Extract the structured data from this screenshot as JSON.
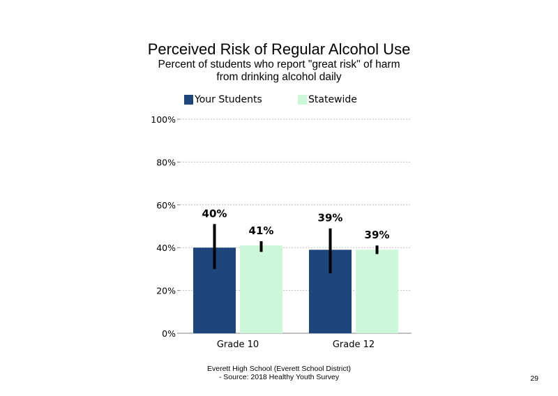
{
  "page": {
    "title": "Perceived Risk of Regular Alcohol Use",
    "subtitle_line1": "Percent of students  who report \"great risk\" of harm",
    "subtitle_line2": "from drinking alcohol daily",
    "footer_line1": "Everett High  School (Everett School District)",
    "footer_line2": "- Source: 2018 Healthy  Youth Survey",
    "page_number": "29"
  },
  "colors": {
    "your_students": "#1f467c",
    "statewide": "#ccf8d9",
    "error_bar": "#000000",
    "grid": "#bfbfbf"
  },
  "chart_data": {
    "type": "bar",
    "categories": [
      "Grade 10",
      "Grade 12"
    ],
    "series": [
      {
        "name": "Your Students",
        "values": [
          40,
          39
        ],
        "labels": [
          "40%",
          "39%"
        ],
        "error_low": [
          30,
          28
        ],
        "error_high": [
          51,
          49
        ]
      },
      {
        "name": "Statewide",
        "values": [
          41,
          39
        ],
        "labels": [
          "41%",
          "39%"
        ],
        "error_low": [
          38,
          37
        ],
        "error_high": [
          43,
          41
        ]
      }
    ],
    "ylim": [
      0,
      100
    ],
    "yticks": [
      0,
      20,
      40,
      60,
      80,
      100
    ],
    "ytick_labels": [
      "0%",
      "20%",
      "40%",
      "60%",
      "80%",
      "100%"
    ],
    "grid": true,
    "legend_position": "top"
  }
}
